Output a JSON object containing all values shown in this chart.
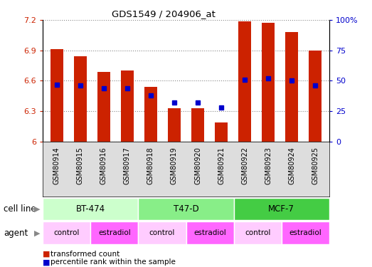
{
  "title": "GDS1549 / 204906_at",
  "samples": [
    "GSM80914",
    "GSM80915",
    "GSM80916",
    "GSM80917",
    "GSM80918",
    "GSM80919",
    "GSM80920",
    "GSM80921",
    "GSM80922",
    "GSM80923",
    "GSM80924",
    "GSM80925"
  ],
  "red_values": [
    6.91,
    6.84,
    6.69,
    6.7,
    6.54,
    6.33,
    6.33,
    6.19,
    7.19,
    7.17,
    7.08,
    6.9
  ],
  "blue_values_pct": [
    47,
    46,
    44,
    44,
    38,
    32,
    32,
    28,
    51,
    52,
    50,
    46
  ],
  "ylim_left": [
    6.0,
    7.2
  ],
  "ylim_right": [
    0,
    100
  ],
  "yticks_left": [
    6.0,
    6.3,
    6.6,
    6.9,
    7.2
  ],
  "yticks_right": [
    0,
    25,
    50,
    75,
    100
  ],
  "ytick_labels_left": [
    "6",
    "6.3",
    "6.6",
    "6.9",
    "7.2"
  ],
  "ytick_labels_right": [
    "0",
    "25",
    "50",
    "75",
    "100%"
  ],
  "cell_lines": [
    {
      "label": "BT-474",
      "start": 0,
      "end": 3,
      "color": "#ccffcc"
    },
    {
      "label": "T47-D",
      "start": 4,
      "end": 7,
      "color": "#88ee88"
    },
    {
      "label": "MCF-7",
      "start": 8,
      "end": 11,
      "color": "#44cc44"
    }
  ],
  "agents": [
    {
      "label": "control",
      "start": 0,
      "end": 1,
      "color": "#ffccff"
    },
    {
      "label": "estradiol",
      "start": 2,
      "end": 3,
      "color": "#ff66ff"
    },
    {
      "label": "control",
      "start": 4,
      "end": 5,
      "color": "#ffccff"
    },
    {
      "label": "estradiol",
      "start": 6,
      "end": 7,
      "color": "#ff66ff"
    },
    {
      "label": "control",
      "start": 8,
      "end": 9,
      "color": "#ffccff"
    },
    {
      "label": "estradiol",
      "start": 10,
      "end": 11,
      "color": "#ff66ff"
    }
  ],
  "bar_color": "#cc2200",
  "dot_color": "#0000cc",
  "base_value": 6.0,
  "grid_color": "#888888",
  "bg_color": "#ffffff",
  "plot_bg": "#ffffff",
  "axis_label_color_left": "#cc2200",
  "axis_label_color_right": "#0000cc",
  "legend_red": "transformed count",
  "legend_blue": "percentile rank within the sample",
  "cell_line_label": "cell line",
  "agent_label": "agent",
  "xticklabel_area_color": "#dddddd",
  "bar_width": 0.55
}
